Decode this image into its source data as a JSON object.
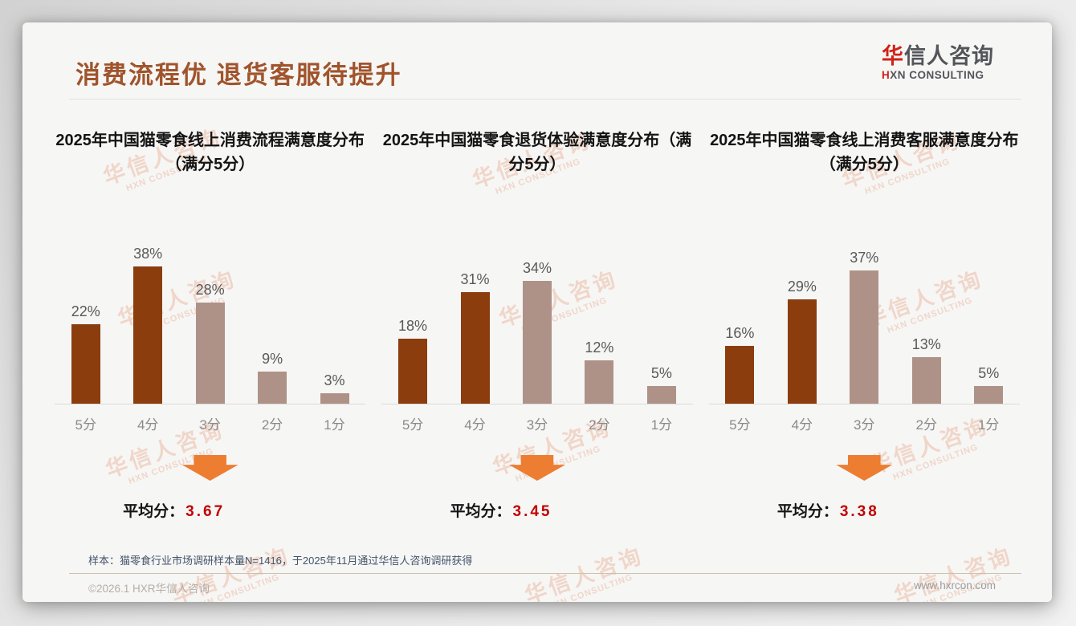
{
  "page": {
    "title": "消费流程优 退货客服待提升",
    "logo": {
      "cn_first": "华",
      "cn_rest": "信人咨询",
      "en_first": "H",
      "en_rest": "XN CONSULTING"
    },
    "note": "样本：猫零食行业市场调研样本量N=1416，于2025年11月通过华信人咨询调研获得",
    "footer_left": "©2026.1 HXR华信人咨询",
    "footer_right": "www.hxrcon.com",
    "watermark": {
      "line1": "华信人咨询",
      "line2": "HXN CONSULTING"
    }
  },
  "colors": {
    "title_brown": "#A0542C",
    "dark_bar": "#8B3D0E",
    "light_bar": "#AE9288",
    "arrow_orange": "#ED7D31",
    "average_red": "#C00000",
    "logo_red": "#CF2318",
    "watermark": "#E58D66"
  },
  "chart_data": [
    {
      "type": "bar",
      "title": "2025年中国猫零食线上消费流程满意度分布（满分5分）",
      "categories": [
        "5分",
        "4分",
        "3分",
        "2分",
        "1分"
      ],
      "values": [
        22,
        38,
        28,
        9,
        3
      ],
      "unit": "%",
      "bar_colors": [
        "dark",
        "dark",
        "light",
        "light",
        "light"
      ],
      "average_label": "平均分：",
      "average": "3.67",
      "xlabel": "",
      "ylabel": "",
      "ylim": [
        0,
        40
      ],
      "grid": false,
      "legend": "none"
    },
    {
      "type": "bar",
      "title": "2025年中国猫零食退货体验满意度分布（满分5分）",
      "categories": [
        "5分",
        "4分",
        "3分",
        "2分",
        "1分"
      ],
      "values": [
        18,
        31,
        34,
        12,
        5
      ],
      "unit": "%",
      "bar_colors": [
        "dark",
        "dark",
        "light",
        "light",
        "light"
      ],
      "average_label": "平均分：",
      "average": "3.45",
      "xlabel": "",
      "ylabel": "",
      "ylim": [
        0,
        40
      ],
      "grid": false,
      "legend": "none"
    },
    {
      "type": "bar",
      "title": "2025年中国猫零食线上消费客服满意度分布（满分5分）",
      "categories": [
        "5分",
        "4分",
        "3分",
        "2分",
        "1分"
      ],
      "values": [
        16,
        29,
        37,
        13,
        5
      ],
      "unit": "%",
      "bar_colors": [
        "dark",
        "dark",
        "light",
        "light",
        "light"
      ],
      "average_label": "平均分：",
      "average": "3.38",
      "xlabel": "",
      "ylabel": "",
      "ylim": [
        0,
        40
      ],
      "grid": false,
      "legend": "none"
    }
  ]
}
